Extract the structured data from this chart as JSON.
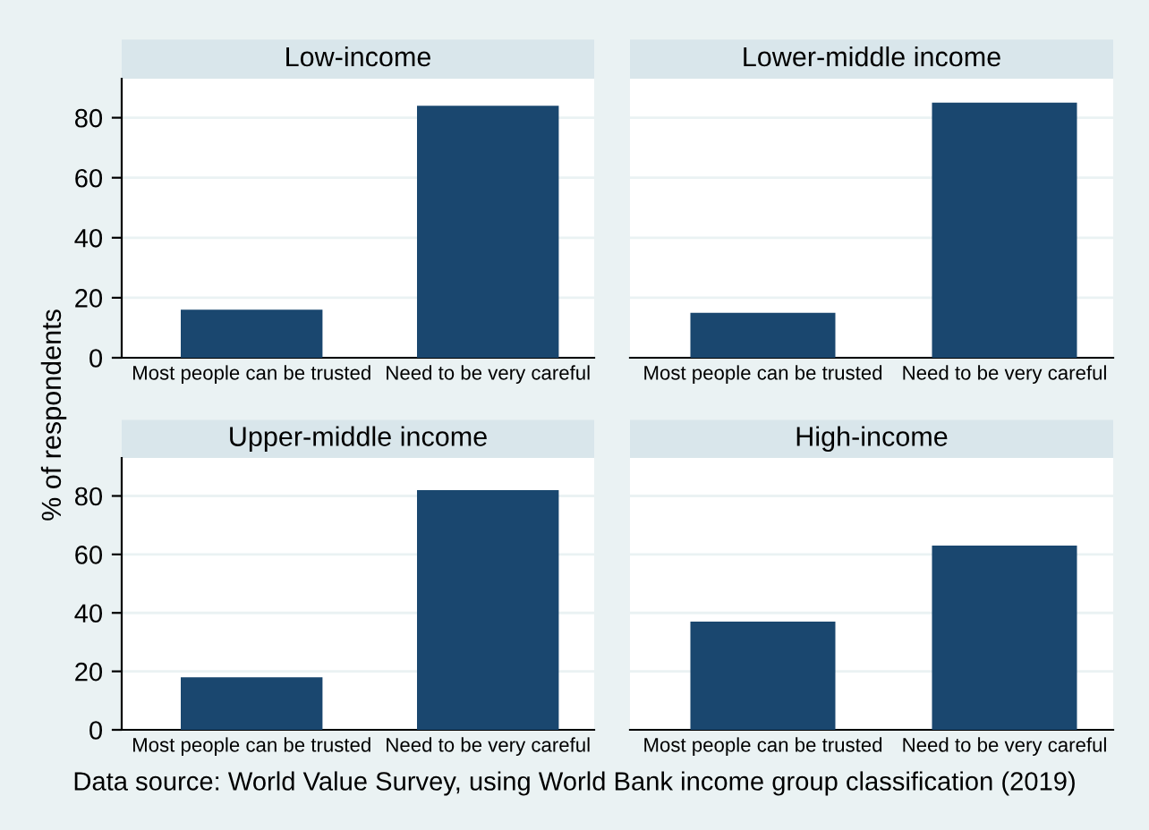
{
  "chart_data": [
    {
      "type": "bar",
      "title": "Low-income",
      "ylabel": "% of respondents",
      "categories": [
        "Most people can be trusted",
        "Need to be very careful"
      ],
      "values": [
        16,
        84
      ],
      "color": "#1a476f",
      "ylim": [
        0,
        93
      ],
      "yticks": [
        0,
        20,
        40,
        60,
        80
      ],
      "grid": "y",
      "legend": false
    },
    {
      "type": "bar",
      "title": "Lower-middle income",
      "categories": [
        "Most people can be trusted",
        "Need to be very careful"
      ],
      "values": [
        15,
        85
      ],
      "color": "#1a476f",
      "ylim": [
        0,
        93
      ],
      "yticks": [
        0,
        20,
        40,
        60,
        80
      ],
      "grid": "y",
      "legend": false,
      "tick_labels": "x"
    },
    {
      "type": "bar",
      "title": "Upper-middle income",
      "categories": [
        "Most people can be trusted",
        "Need to be very careful"
      ],
      "values": [
        18,
        82
      ],
      "color": "#1a476f",
      "ylim": [
        0,
        93
      ],
      "yticks": [
        0,
        20,
        40,
        60,
        80
      ],
      "grid": "y",
      "legend": false
    },
    {
      "type": "bar",
      "title": "High-income",
      "categories": [
        "Most people can be trusted",
        "Need to be very careful"
      ],
      "values": [
        37,
        63
      ],
      "color": "#1a476f",
      "ylim": [
        0,
        93
      ],
      "yticks": [
        0,
        20,
        40,
        60,
        80
      ],
      "grid": "y",
      "legend": false,
      "tick_labels": "x",
      "annotations": [
        "Data source: World Value Survey, using World Bank income group classification (2019)"
      ]
    }
  ]
}
